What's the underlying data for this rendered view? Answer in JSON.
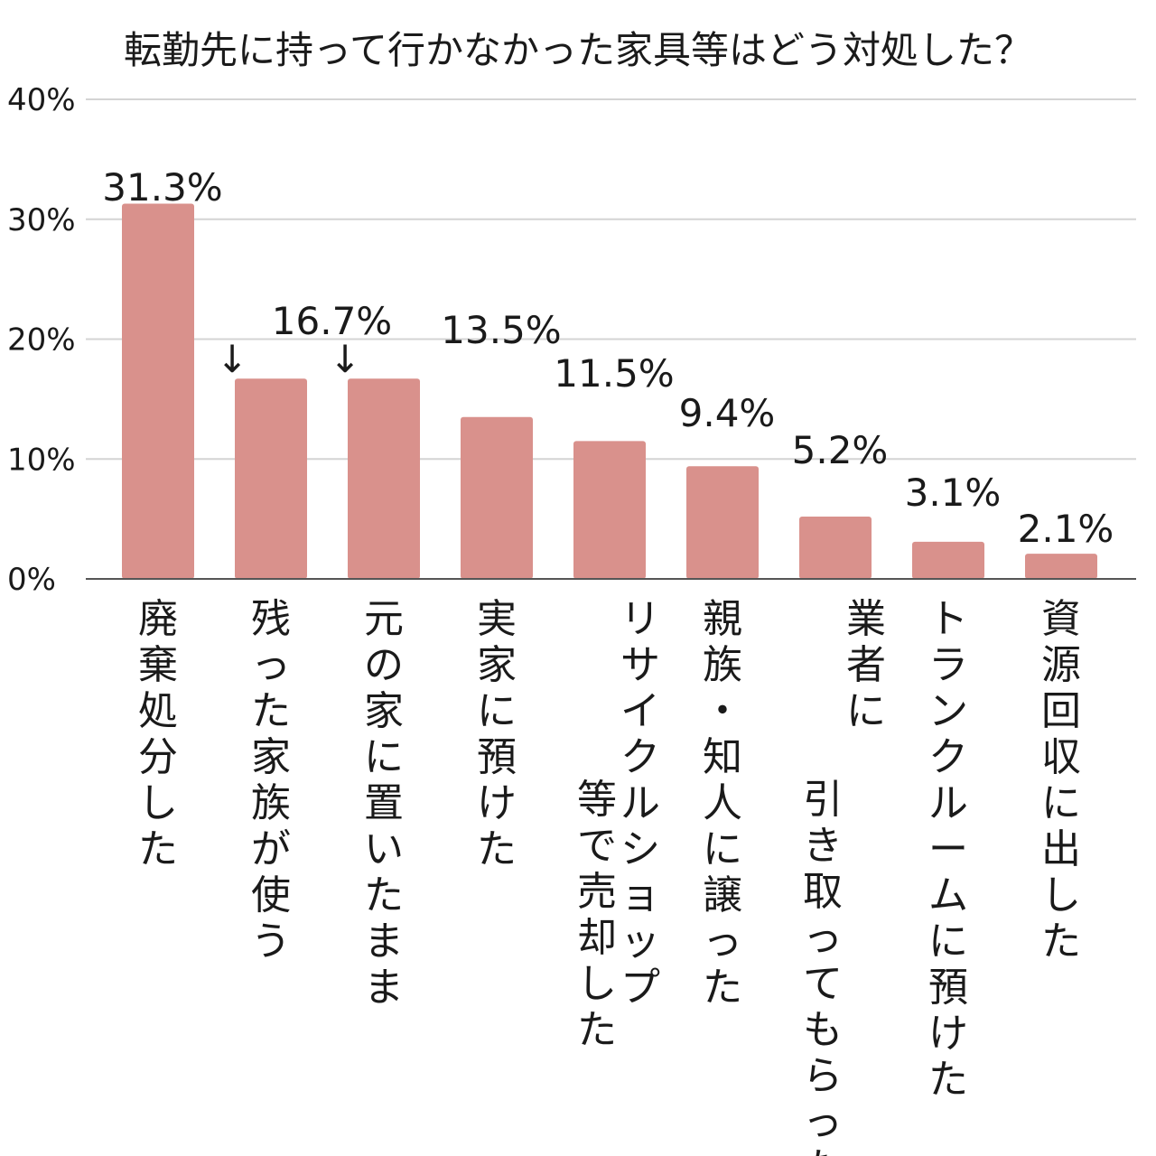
{
  "chart_data": {
    "type": "bar",
    "title": "転勤先に持って行かなかった家具等はどう対処した？",
    "xlabel": "",
    "ylabel": "",
    "ylim": [
      0,
      40
    ],
    "yticks": [
      0,
      10,
      20,
      30,
      40
    ],
    "ytick_labels": [
      "0%",
      "10%",
      "20%",
      "30%",
      "40%"
    ],
    "grid": true,
    "legend": "none",
    "bar_color": "#d9918c",
    "categories": [
      [
        "廃棄処分した"
      ],
      [
        "残った家族が使う"
      ],
      [
        "元の家に置いたまま"
      ],
      [
        "実家に預けた"
      ],
      [
        "リサイクルショップ",
        "等で売却した"
      ],
      [
        "親族・知人に譲った"
      ],
      [
        "業者に",
        "引き取ってもらった"
      ],
      [
        "トランクルームに預けた"
      ],
      [
        "資源回収に出した"
      ]
    ],
    "values": [
      31.3,
      16.7,
      16.7,
      13.5,
      11.5,
      9.4,
      5.2,
      3.1,
      2.1
    ],
    "value_labels": [
      "31.3%",
      "16.7%",
      "",
      "13.5%",
      "11.5%",
      "9.4%",
      "5.2%",
      "3.1%",
      "2.1%"
    ],
    "annotations": [
      "↓",
      "↓"
    ]
  }
}
